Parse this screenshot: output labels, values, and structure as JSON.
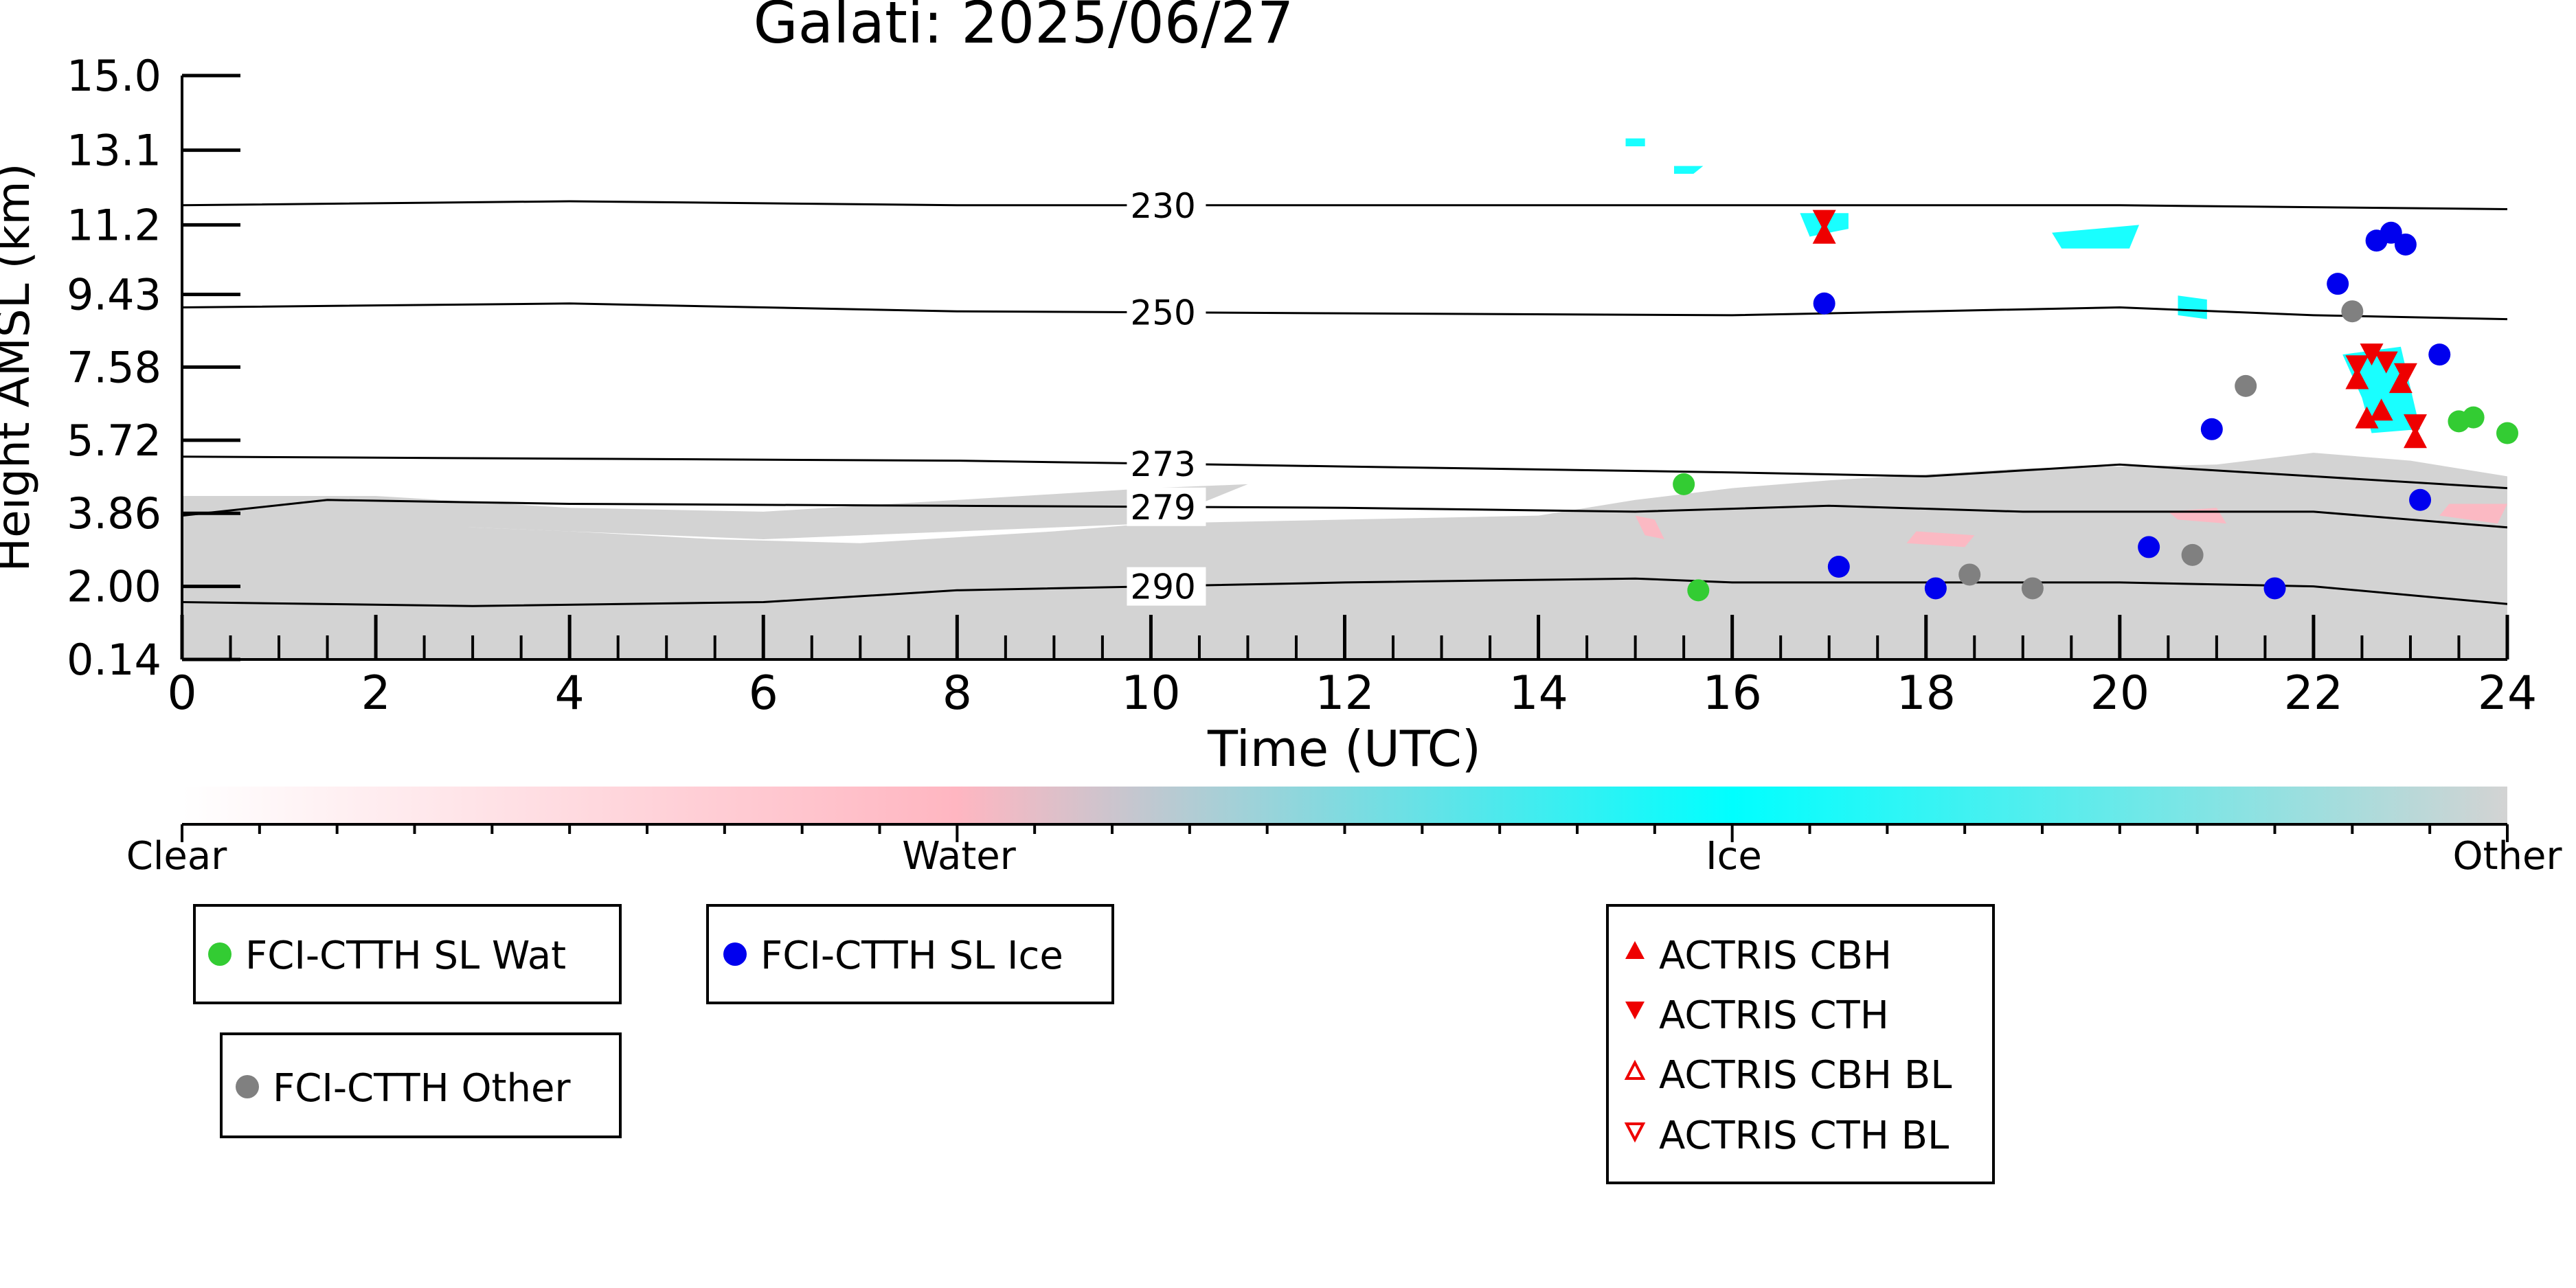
{
  "chart_data": {
    "type": "scatter",
    "title": "Galati: 2025/06/27",
    "xlabel": "Time (UTC)",
    "ylabel": "Height AMSL (km)",
    "xlim": [
      0,
      24
    ],
    "ylim": [
      0.14,
      15.0
    ],
    "x_ticks": [
      0,
      2,
      4,
      6,
      8,
      10,
      12,
      14,
      16,
      18,
      20,
      22,
      24
    ],
    "y_ticks": [
      "0.14",
      "2.00",
      "3.86",
      "5.72",
      "7.58",
      "9.43",
      "11.2",
      "13.1",
      "15.0"
    ],
    "y_tick_values": [
      0.14,
      2.0,
      3.86,
      5.72,
      7.58,
      9.43,
      11.2,
      13.1,
      15.0
    ],
    "colorbar": {
      "labels": [
        "Clear",
        "Water",
        "Ice",
        "Other"
      ],
      "colors": [
        "#ffffff",
        "#ffb6c1",
        "#00ffff",
        "#d3d3d3"
      ]
    },
    "isotherms": [
      {
        "label": "230",
        "points": [
          [
            0,
            11.7
          ],
          [
            4,
            11.8
          ],
          [
            8,
            11.7
          ],
          [
            12,
            11.7
          ],
          [
            16,
            11.7
          ],
          [
            20,
            11.7
          ],
          [
            24,
            11.6
          ]
        ]
      },
      {
        "label": "250",
        "points": [
          [
            0,
            9.1
          ],
          [
            4,
            9.2
          ],
          [
            8,
            9.0
          ],
          [
            12,
            8.95
          ],
          [
            16,
            8.9
          ],
          [
            18,
            9.0
          ],
          [
            20,
            9.1
          ],
          [
            22,
            8.9
          ],
          [
            24,
            8.8
          ]
        ]
      },
      {
        "label": "273",
        "points": [
          [
            0,
            5.3
          ],
          [
            4,
            5.25
          ],
          [
            8,
            5.2
          ],
          [
            12,
            5.05
          ],
          [
            16,
            4.9
          ],
          [
            18,
            4.8
          ],
          [
            20,
            5.1
          ],
          [
            22,
            4.8
          ],
          [
            24,
            4.5
          ]
        ]
      },
      {
        "label": "279",
        "points": [
          [
            0,
            3.8
          ],
          [
            1.5,
            4.2
          ],
          [
            4,
            4.1
          ],
          [
            8,
            4.05
          ],
          [
            12,
            4.0
          ],
          [
            15,
            3.9
          ],
          [
            17,
            4.05
          ],
          [
            19,
            3.9
          ],
          [
            22,
            3.9
          ],
          [
            24,
            3.5
          ]
        ]
      },
      {
        "label": "290",
        "points": [
          [
            0,
            1.6
          ],
          [
            3,
            1.5
          ],
          [
            6,
            1.6
          ],
          [
            8,
            1.9
          ],
          [
            12,
            2.1
          ],
          [
            15,
            2.2
          ],
          [
            16,
            2.1
          ],
          [
            20,
            2.1
          ],
          [
            22,
            2.0
          ],
          [
            24,
            1.55
          ]
        ]
      }
    ],
    "series": [
      {
        "name": "FCI-CTTH SL Wat",
        "color": "#33cc33",
        "marker": "circle",
        "points": [
          [
            15.5,
            4.6
          ],
          [
            15.65,
            1.9
          ],
          [
            23.5,
            6.2
          ],
          [
            23.65,
            6.3
          ],
          [
            24.0,
            5.9
          ]
        ]
      },
      {
        "name": "FCI-CTTH SL Ice",
        "color": "#0000ee",
        "marker": "circle",
        "points": [
          [
            16.95,
            9.2
          ],
          [
            17.1,
            2.5
          ],
          [
            18.1,
            1.95
          ],
          [
            20.3,
            3.0
          ],
          [
            20.95,
            6.0
          ],
          [
            21.6,
            1.95
          ],
          [
            22.25,
            9.7
          ],
          [
            22.65,
            10.8
          ],
          [
            22.8,
            11.0
          ],
          [
            22.95,
            10.7
          ],
          [
            23.1,
            4.2
          ],
          [
            23.3,
            7.9
          ]
        ]
      },
      {
        "name": "FCI-CTTH Other",
        "color": "#808080",
        "marker": "circle",
        "points": [
          [
            18.45,
            2.3
          ],
          [
            19.1,
            1.95
          ],
          [
            20.75,
            2.8
          ],
          [
            21.3,
            7.1
          ],
          [
            22.4,
            9.0
          ]
        ]
      },
      {
        "name": "ACTRIS CBH",
        "color": "#ee0000",
        "marker": "triangle-up",
        "points": [
          [
            16.95,
            11.0
          ],
          [
            22.45,
            7.3
          ],
          [
            22.55,
            6.3
          ],
          [
            22.7,
            6.5
          ],
          [
            22.9,
            7.2
          ],
          [
            23.05,
            5.8
          ]
        ]
      },
      {
        "name": "ACTRIS CTH",
        "color": "#ee0000",
        "marker": "triangle-down",
        "points": [
          [
            16.95,
            11.3
          ],
          [
            22.45,
            7.6
          ],
          [
            22.6,
            7.9
          ],
          [
            22.75,
            7.7
          ],
          [
            22.95,
            7.4
          ],
          [
            23.05,
            6.1
          ]
        ]
      },
      {
        "name": "ACTRIS CBH BL",
        "color": "#ee0000",
        "marker": "triangle-up-open",
        "points": []
      },
      {
        "name": "ACTRIS CTH BL",
        "color": "#ee0000",
        "marker": "triangle-down-open",
        "points": []
      }
    ],
    "cloud_mask_regions": [
      {
        "class": "Other",
        "points": [
          [
            0,
            0.14
          ],
          [
            0,
            3.8
          ],
          [
            2,
            3.6
          ],
          [
            4,
            3.4
          ],
          [
            5.5,
            3.2
          ],
          [
            7,
            3.1
          ],
          [
            9,
            3.4
          ],
          [
            10,
            3.6
          ],
          [
            12,
            3.7
          ],
          [
            14,
            3.8
          ],
          [
            15,
            4.2
          ],
          [
            16,
            4.5
          ],
          [
            17,
            4.7
          ],
          [
            19,
            5.0
          ],
          [
            21,
            5.1
          ],
          [
            22,
            5.4
          ],
          [
            23,
            5.2
          ],
          [
            24,
            4.8
          ],
          [
            24,
            0.14
          ]
        ]
      },
      {
        "class": "Other",
        "points": [
          [
            0,
            3.6
          ],
          [
            0,
            4.3
          ],
          [
            2,
            4.3
          ],
          [
            4,
            4.0
          ],
          [
            6,
            3.9
          ],
          [
            8,
            4.2
          ],
          [
            10,
            4.5
          ],
          [
            11,
            4.6
          ],
          [
            10,
            3.6
          ],
          [
            6,
            3.2
          ],
          [
            3,
            3.5
          ]
        ]
      },
      {
        "class": "Water",
        "points": [
          [
            15.1,
            3.3
          ],
          [
            15.3,
            3.2
          ],
          [
            15.2,
            3.7
          ],
          [
            15.0,
            3.8
          ]
        ]
      },
      {
        "class": "Water",
        "points": [
          [
            17.8,
            3.1
          ],
          [
            18.4,
            3.0
          ],
          [
            18.5,
            3.3
          ],
          [
            17.9,
            3.4
          ]
        ]
      },
      {
        "class": "Water",
        "points": [
          [
            20.6,
            3.7
          ],
          [
            21.1,
            3.6
          ],
          [
            21.0,
            4.0
          ],
          [
            20.5,
            3.9
          ]
        ]
      },
      {
        "class": "Water",
        "points": [
          [
            23.3,
            3.8
          ],
          [
            23.9,
            3.6
          ],
          [
            24.0,
            4.1
          ],
          [
            23.4,
            4.1
          ]
        ]
      },
      {
        "class": "Ice",
        "points": [
          [
            16.7,
            11.5
          ],
          [
            17.2,
            11.5
          ],
          [
            17.2,
            11.1
          ],
          [
            16.8,
            10.9
          ]
        ]
      },
      {
        "class": "Ice",
        "points": [
          [
            19.3,
            11.0
          ],
          [
            20.2,
            11.2
          ],
          [
            20.1,
            10.6
          ],
          [
            19.4,
            10.6
          ]
        ]
      },
      {
        "class": "Ice",
        "points": [
          [
            20.6,
            9.4
          ],
          [
            20.9,
            9.3
          ],
          [
            20.9,
            8.8
          ],
          [
            20.6,
            8.9
          ]
        ]
      },
      {
        "class": "Ice",
        "points": [
          [
            22.3,
            7.9
          ],
          [
            22.9,
            8.1
          ],
          [
            23.1,
            6.0
          ],
          [
            22.6,
            5.9
          ],
          [
            22.5,
            6.8
          ]
        ]
      },
      {
        "class": "Ice",
        "points": [
          [
            14.9,
            13.4
          ],
          [
            15.1,
            13.4
          ],
          [
            15.1,
            13.2
          ],
          [
            14.9,
            13.2
          ]
        ]
      },
      {
        "class": "Ice",
        "points": [
          [
            15.4,
            12.7
          ],
          [
            15.7,
            12.7
          ],
          [
            15.6,
            12.5
          ],
          [
            15.4,
            12.5
          ]
        ]
      }
    ]
  }
}
